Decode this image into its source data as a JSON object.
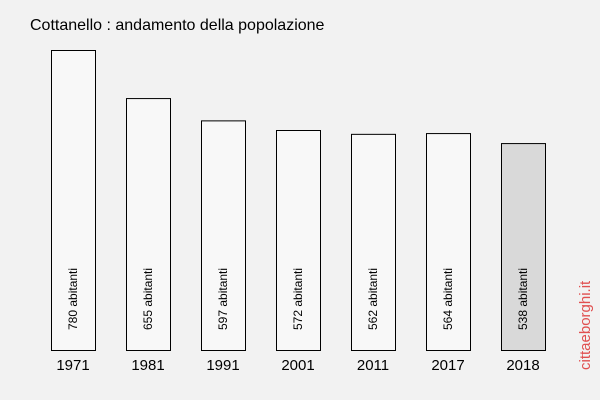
{
  "chart_data": {
    "type": "bar",
    "title": "Cottanello : andamento della popolazione",
    "categories": [
      "1971",
      "1981",
      "1991",
      "2001",
      "2011",
      "2017",
      "2018"
    ],
    "values": [
      780,
      655,
      597,
      572,
      562,
      564,
      538
    ],
    "value_labels": [
      "780 abitanti",
      "655 abitanti",
      "597 abitanti",
      "572 abitanti",
      "562 abitanti",
      "564 abitanti",
      "538 abitanti"
    ],
    "highlighted_category": "2018",
    "ylim": [
      0,
      780
    ],
    "grid": false,
    "colors": {
      "bar_fill": "#f8f8f8",
      "bar_highlight": "#d9d9d9",
      "bar_stroke": "#000000",
      "background": "#f2f2f2",
      "watermark": "#e05050"
    }
  },
  "watermark": "cittaeborghi.it"
}
